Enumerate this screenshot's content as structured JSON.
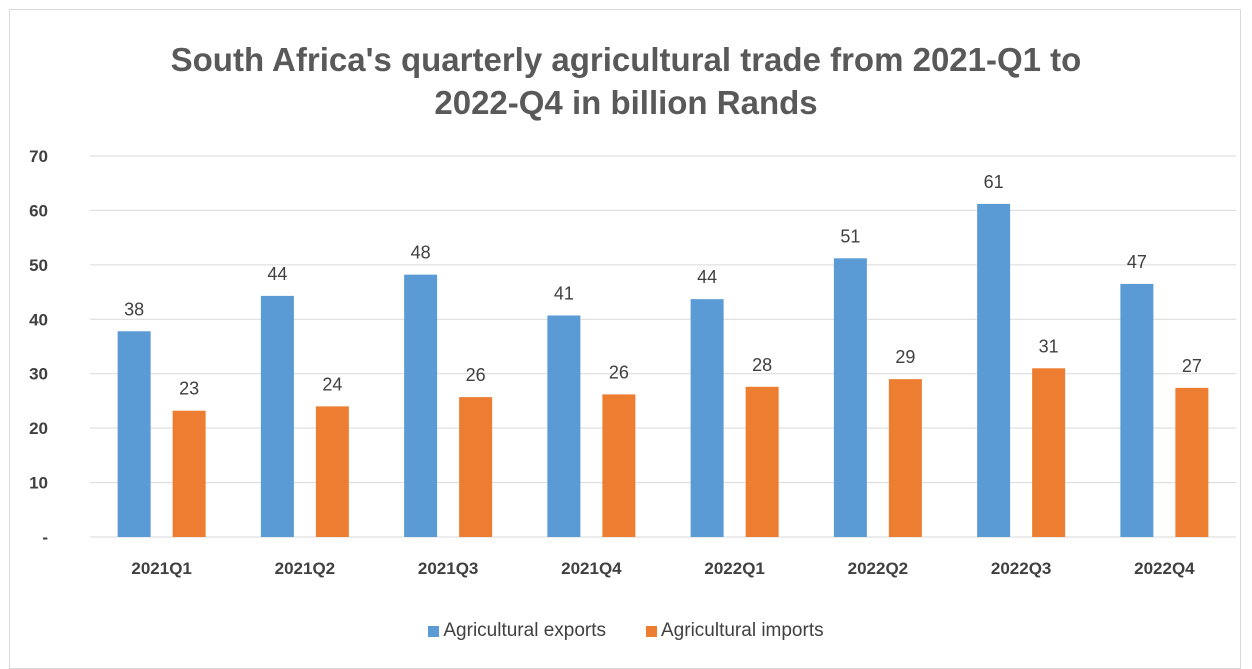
{
  "chart_data": {
    "type": "bar",
    "title_lines": [
      "South Africa's quarterly agricultural trade from 2021-Q1 to",
      "2022-Q4  in billion Rands"
    ],
    "xlabel": "",
    "ylabel": "",
    "ylim": [
      0,
      70
    ],
    "yticks": [
      0,
      10,
      20,
      30,
      40,
      50,
      60,
      70
    ],
    "ytick_labels": [
      "-",
      "10",
      "20",
      "30",
      "40",
      "50",
      "60",
      "70"
    ],
    "grid": true,
    "legend_position": "bottom",
    "categories": [
      "2021Q1",
      "2021Q2",
      "2021Q3",
      "2021Q4",
      "2022Q1",
      "2022Q2",
      "2022Q3",
      "2022Q4"
    ],
    "series": [
      {
        "name": "Agricultural exports",
        "color": "#5b9bd5",
        "values": [
          37.8,
          44.3,
          48.2,
          40.7,
          43.7,
          51.2,
          61.2,
          46.5
        ],
        "labels": [
          "38",
          "44",
          "48",
          "41",
          "44",
          "51",
          "61",
          "47"
        ]
      },
      {
        "name": "Agricultural imports",
        "color": "#ed7d31",
        "values": [
          23.2,
          24.0,
          25.7,
          26.2,
          27.6,
          29.0,
          31.0,
          27.4
        ],
        "labels": [
          "23",
          "24",
          "26",
          "26",
          "28",
          "29",
          "31",
          "27"
        ]
      }
    ]
  }
}
